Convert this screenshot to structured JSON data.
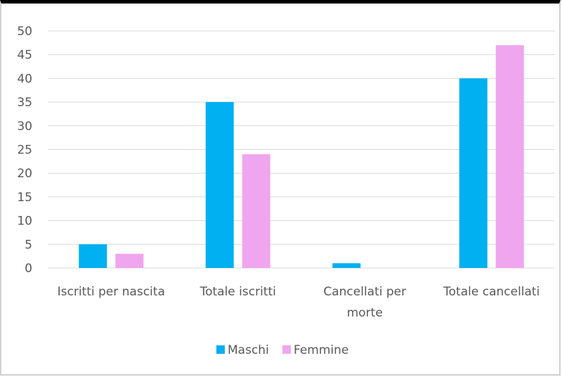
{
  "chart_data": {
    "type": "bar",
    "title": "",
    "xlabel": "",
    "ylabel": "",
    "ylim": [
      0,
      50
    ],
    "yticks": [
      0,
      5,
      10,
      15,
      20,
      25,
      30,
      35,
      40,
      45,
      50
    ],
    "grid": true,
    "legend": "bottom",
    "categories": [
      [
        "Iscritti per nascita"
      ],
      [
        "Totale iscritti"
      ],
      [
        "Cancellati per",
        "morte"
      ],
      [
        "Totale cancellati"
      ]
    ],
    "series": [
      {
        "name": "Maschi",
        "color": "#00b0f0",
        "values": [
          5,
          35,
          1,
          40
        ]
      },
      {
        "name": "Femmine",
        "color": "#f0a6ee",
        "values": [
          3,
          24,
          0,
          47
        ]
      }
    ]
  }
}
